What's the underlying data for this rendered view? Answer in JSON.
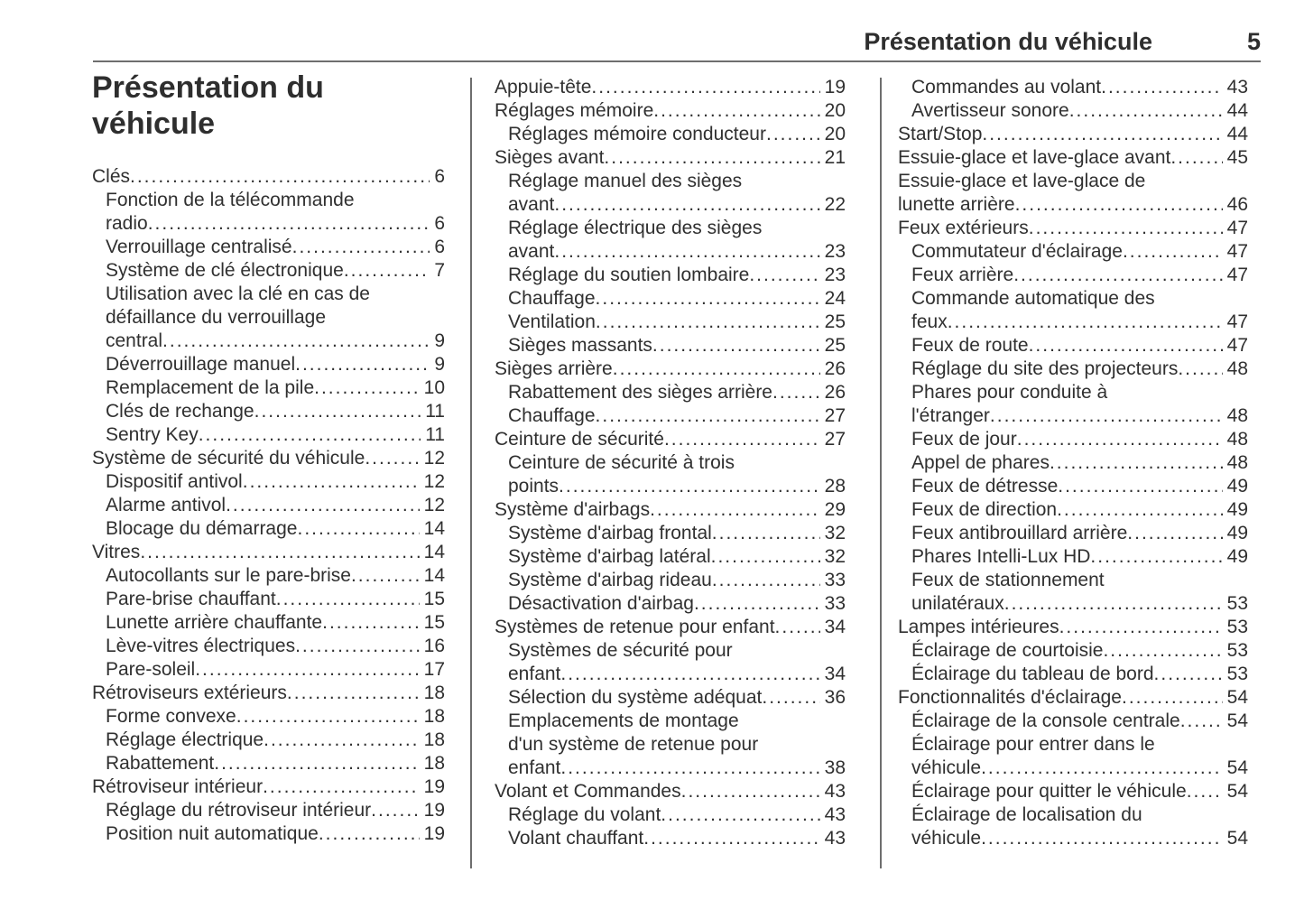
{
  "header": {
    "title": "Présentation du véhicule",
    "page_number": "5"
  },
  "page_title": "Présentation du\nvéhicule",
  "colors": {
    "text": "#303030",
    "heading_text": "#2e2e2e",
    "rule": "#6e6e6e",
    "background": "#ffffff"
  },
  "toc": {
    "columns": [
      {
        "entries": [
          {
            "level": 1,
            "label": "Clés",
            "page": "6"
          },
          {
            "level": 2,
            "label": "Fonction de la télécommande\nradio",
            "page": "6"
          },
          {
            "level": 2,
            "label": "Verrouillage centralisé",
            "page": "6"
          },
          {
            "level": 2,
            "label": "Système de clé électronique",
            "page": "7"
          },
          {
            "level": 2,
            "label": "Utilisation avec la clé en cas de\ndéfaillance du verrouillage\ncentral",
            "page": "9"
          },
          {
            "level": 2,
            "label": "Déverrouillage manuel",
            "page": "9"
          },
          {
            "level": 2,
            "label": "Remplacement de la pile",
            "page": "10"
          },
          {
            "level": 2,
            "label": "Clés de rechange",
            "page": "11"
          },
          {
            "level": 2,
            "label": "Sentry Key",
            "page": "11"
          },
          {
            "level": 1,
            "label": "Système de sécurité du véhicule",
            "page": "12"
          },
          {
            "level": 2,
            "label": "Dispositif antivol",
            "page": "12"
          },
          {
            "level": 2,
            "label": "Alarme antivol",
            "page": "12"
          },
          {
            "level": 2,
            "label": "Blocage du démarrage",
            "page": "14"
          },
          {
            "level": 1,
            "label": "Vitres",
            "page": "14"
          },
          {
            "level": 2,
            "label": "Autocollants sur le pare-brise",
            "page": "14"
          },
          {
            "level": 2,
            "label": "Pare-brise chauffant",
            "page": "15"
          },
          {
            "level": 2,
            "label": "Lunette arrière chauffante",
            "page": "15"
          },
          {
            "level": 2,
            "label": "Lève-vitres électriques",
            "page": "16"
          },
          {
            "level": 2,
            "label": "Pare-soleil",
            "page": "17"
          },
          {
            "level": 1,
            "label": "Rétroviseurs extérieurs",
            "page": "18"
          },
          {
            "level": 2,
            "label": "Forme convexe",
            "page": "18"
          },
          {
            "level": 2,
            "label": "Réglage électrique",
            "page": "18"
          },
          {
            "level": 2,
            "label": "Rabattement",
            "page": "18"
          },
          {
            "level": 1,
            "label": "Rétroviseur intérieur",
            "page": "19"
          },
          {
            "level": 2,
            "label": "Réglage du rétroviseur intérieur",
            "page": "19"
          },
          {
            "level": 2,
            "label": "Position nuit automatique",
            "page": "19"
          }
        ]
      },
      {
        "entries": [
          {
            "level": 1,
            "label": "Appuie-tête",
            "page": "19"
          },
          {
            "level": 1,
            "label": "Réglages mémoire",
            "page": "20"
          },
          {
            "level": 2,
            "label": "Réglages mémoire conducteur",
            "page": "20"
          },
          {
            "level": 1,
            "label": "Sièges avant",
            "page": "21"
          },
          {
            "level": 2,
            "label": "Réglage manuel des sièges\navant",
            "page": "22"
          },
          {
            "level": 2,
            "label": "Réglage électrique des sièges\navant",
            "page": "23"
          },
          {
            "level": 2,
            "label": "Réglage du soutien lombaire",
            "page": "23"
          },
          {
            "level": 2,
            "label": "Chauffage",
            "page": "24"
          },
          {
            "level": 2,
            "label": "Ventilation",
            "page": "25"
          },
          {
            "level": 2,
            "label": "Sièges massants",
            "page": "25"
          },
          {
            "level": 1,
            "label": "Sièges arrière",
            "page": "26"
          },
          {
            "level": 2,
            "label": "Rabattement des sièges arrière",
            "page": "26"
          },
          {
            "level": 2,
            "label": "Chauffage",
            "page": "27"
          },
          {
            "level": 1,
            "label": "Ceinture de sécurité",
            "page": "27"
          },
          {
            "level": 2,
            "label": "Ceinture de sécurité à trois\npoints",
            "page": "28"
          },
          {
            "level": 1,
            "label": "Système d'airbags",
            "page": "29"
          },
          {
            "level": 2,
            "label": "Système d'airbag frontal",
            "page": "32"
          },
          {
            "level": 2,
            "label": "Système d'airbag latéral",
            "page": "32"
          },
          {
            "level": 2,
            "label": "Système d'airbag rideau",
            "page": "33"
          },
          {
            "level": 2,
            "label": "Désactivation d'airbag",
            "page": "33"
          },
          {
            "level": 1,
            "label": "Systèmes de retenue pour enfant",
            "page": "34"
          },
          {
            "level": 2,
            "label": "Systèmes de sécurité pour\nenfant",
            "page": "34"
          },
          {
            "level": 2,
            "label": "Sélection du système adéquat",
            "page": "36"
          },
          {
            "level": 2,
            "label": "Emplacements de montage\nd'un système de retenue pour\nenfant",
            "page": "38"
          },
          {
            "level": 1,
            "label": "Volant et Commandes",
            "page": "43"
          },
          {
            "level": 2,
            "label": "Réglage du volant",
            "page": "43"
          },
          {
            "level": 2,
            "label": "Volant chauffant",
            "page": "43"
          }
        ]
      },
      {
        "entries": [
          {
            "level": 2,
            "label": "Commandes au volant",
            "page": "43"
          },
          {
            "level": 2,
            "label": "Avertisseur sonore",
            "page": "44"
          },
          {
            "level": 1,
            "label": "Start/Stop",
            "page": "44"
          },
          {
            "level": 1,
            "label": "Essuie-glace et lave-glace avant",
            "page": "45"
          },
          {
            "level": 1,
            "label": "Essuie-glace et lave-glace de\nlunette arrière",
            "page": "46"
          },
          {
            "level": 1,
            "label": "Feux extérieurs",
            "page": "47"
          },
          {
            "level": 2,
            "label": "Commutateur d'éclairage",
            "page": "47"
          },
          {
            "level": 2,
            "label": "Feux arrière",
            "page": "47"
          },
          {
            "level": 2,
            "label": "Commande automatique des\nfeux",
            "page": "47"
          },
          {
            "level": 2,
            "label": "Feux de route",
            "page": "47"
          },
          {
            "level": 2,
            "label": "Réglage du site des projecteurs",
            "page": "48"
          },
          {
            "level": 2,
            "label": "Phares pour conduite à\nl'étranger",
            "page": "48"
          },
          {
            "level": 2,
            "label": "Feux de jour",
            "page": "48"
          },
          {
            "level": 2,
            "label": "Appel de phares",
            "page": "48"
          },
          {
            "level": 2,
            "label": "Feux de détresse",
            "page": "49"
          },
          {
            "level": 2,
            "label": "Feux de direction",
            "page": "49"
          },
          {
            "level": 2,
            "label": "Feux antibrouillard arrière",
            "page": "49"
          },
          {
            "level": 2,
            "label": "Phares Intelli-Lux HD",
            "page": "49"
          },
          {
            "level": 2,
            "label": "Feux de stationnement\nunilatéraux",
            "page": "53"
          },
          {
            "level": 1,
            "label": "Lampes intérieures",
            "page": "53"
          },
          {
            "level": 2,
            "label": "Éclairage de courtoisie",
            "page": "53"
          },
          {
            "level": 2,
            "label": "Éclairage du tableau de bord",
            "page": "53"
          },
          {
            "level": 1,
            "label": "Fonctionnalités d'éclairage",
            "page": "54"
          },
          {
            "level": 2,
            "label": "Éclairage de la console centrale",
            "page": "54"
          },
          {
            "level": 2,
            "label": "Éclairage pour entrer dans le\nvéhicule",
            "page": "54"
          },
          {
            "level": 2,
            "label": "Éclairage pour quitter le véhicule",
            "page": "54"
          },
          {
            "level": 2,
            "label": "Éclairage de localisation du\nvéhicule",
            "page": "54"
          }
        ]
      }
    ]
  }
}
